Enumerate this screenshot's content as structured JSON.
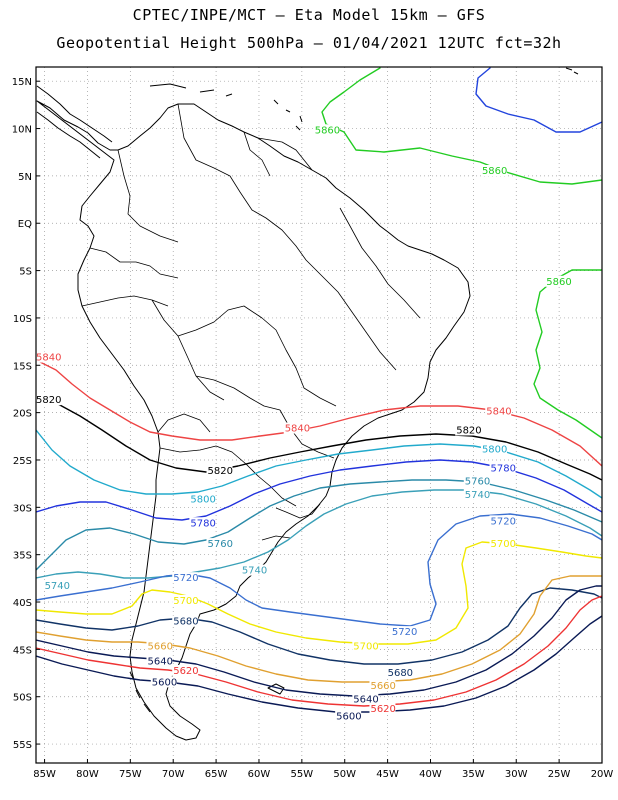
{
  "header": {
    "line1": "CPTEC/INPE/MCT –  Eta Model 15km – GFS",
    "line2": "Geopotential Height 500hPa – 01/04/2021 12UTC fct=32h"
  },
  "axes": {
    "lat_labels": [
      "15N",
      "10N",
      "5N",
      "EQ",
      "5S",
      "10S",
      "15S",
      "20S",
      "25S",
      "30S",
      "35S",
      "40S",
      "45S",
      "50S",
      "55S"
    ],
    "lat_values": [
      15,
      10,
      5,
      0,
      -5,
      -10,
      -15,
      -20,
      -25,
      -30,
      -35,
      -40,
      -45,
      -50,
      -55
    ],
    "lon_labels": [
      "85W",
      "80W",
      "75W",
      "70W",
      "65W",
      "60W",
      "55W",
      "50W",
      "45W",
      "40W",
      "35W",
      "30W",
      "25W",
      "20W"
    ],
    "lon_values": [
      -85,
      -80,
      -75,
      -70,
      -65,
      -60,
      -55,
      -50,
      -45,
      -40,
      -35,
      -30,
      -25,
      -20
    ],
    "lon_range": [
      -86,
      -20
    ],
    "lat_range": [
      -57,
      16.5
    ],
    "grid": "dotted"
  },
  "colors": {
    "c5860": "#22cc22",
    "c5840": "#ee4444",
    "c5820": "#000000",
    "c5800": "#22aacc",
    "c5780": "#2233dd",
    "c5760": "#2a8aa8",
    "c5740": "#3aa0b8",
    "c5720": "#3a6fd0",
    "c5700": "#f0e800",
    "c5680": "#113366",
    "c5660": "#e0a030",
    "c5640": "#0a1a55",
    "c5620": "#ee3333",
    "c5600": "#0a1a55",
    "c5880": "#2244dd"
  },
  "contour_labels": [
    {
      "text": "5860",
      "lon": -53.5,
      "lat": 9.5,
      "color": "c5860"
    },
    {
      "text": "5860",
      "lon": -34,
      "lat": 5.2,
      "color": "c5860"
    },
    {
      "text": "5860",
      "lon": -26.5,
      "lat": -6.5,
      "color": "c5860"
    },
    {
      "text": "5840",
      "lon": -86,
      "lat": -14.5,
      "color": "c5840"
    },
    {
      "text": "5840",
      "lon": -57,
      "lat": -22,
      "color": "c5840"
    },
    {
      "text": "5840",
      "lon": -33.5,
      "lat": -20.2,
      "color": "c5840"
    },
    {
      "text": "5820",
      "lon": -86,
      "lat": -19,
      "color": "c5820"
    },
    {
      "text": "5820",
      "lon": -66,
      "lat": -26.5,
      "color": "c5820"
    },
    {
      "text": "5820",
      "lon": -37,
      "lat": -22.2,
      "color": "c5820"
    },
    {
      "text": "5800",
      "lon": -68,
      "lat": -29.5,
      "color": "c5800"
    },
    {
      "text": "5800",
      "lon": -34,
      "lat": -24.2,
      "color": "c5800"
    },
    {
      "text": "5780",
      "lon": -68,
      "lat": -32,
      "color": "c5780"
    },
    {
      "text": "5780",
      "lon": -33,
      "lat": -26.2,
      "color": "c5780"
    },
    {
      "text": "5760",
      "lon": -66,
      "lat": -34.2,
      "color": "c5760"
    },
    {
      "text": "5760",
      "lon": -36,
      "lat": -27.6,
      "color": "c5760"
    },
    {
      "text": "5740",
      "lon": -36,
      "lat": -29,
      "color": "c5740"
    },
    {
      "text": "5740",
      "lon": -62,
      "lat": -37,
      "color": "c5740"
    },
    {
      "text": "5740",
      "lon": -85,
      "lat": -38.6,
      "color": "c5740"
    },
    {
      "text": "5720",
      "lon": -70,
      "lat": -37.8,
      "color": "c5720"
    },
    {
      "text": "5720",
      "lon": -33,
      "lat": -31.8,
      "color": "c5720"
    },
    {
      "text": "5720",
      "lon": -44.5,
      "lat": -43.5,
      "color": "c5720"
    },
    {
      "text": "5700",
      "lon": -70,
      "lat": -40.2,
      "color": "c5700"
    },
    {
      "text": "5700",
      "lon": -33,
      "lat": -34.2,
      "color": "c5700"
    },
    {
      "text": "5700",
      "lon": -49,
      "lat": -45,
      "color": "c5700"
    },
    {
      "text": "5680",
      "lon": -70,
      "lat": -42.4,
      "color": "c5680"
    },
    {
      "text": "5680",
      "lon": -45,
      "lat": -47.8,
      "color": "c5680"
    },
    {
      "text": "5660",
      "lon": -73,
      "lat": -45,
      "color": "c5660"
    },
    {
      "text": "5660",
      "lon": -47,
      "lat": -49.2,
      "color": "c5660"
    },
    {
      "text": "5640",
      "lon": -73,
      "lat": -46.6,
      "color": "c5640"
    },
    {
      "text": "5640",
      "lon": -49,
      "lat": -50.6,
      "color": "c5640"
    },
    {
      "text": "5620",
      "lon": -70,
      "lat": -47.6,
      "color": "c5620"
    },
    {
      "text": "5620",
      "lon": -47,
      "lat": -51.6,
      "color": "c5620"
    },
    {
      "text": "5600",
      "lon": -72.5,
      "lat": -48.8,
      "color": "c5600"
    },
    {
      "text": "5600",
      "lon": -51,
      "lat": -52.4,
      "color": "c5600"
    }
  ]
}
